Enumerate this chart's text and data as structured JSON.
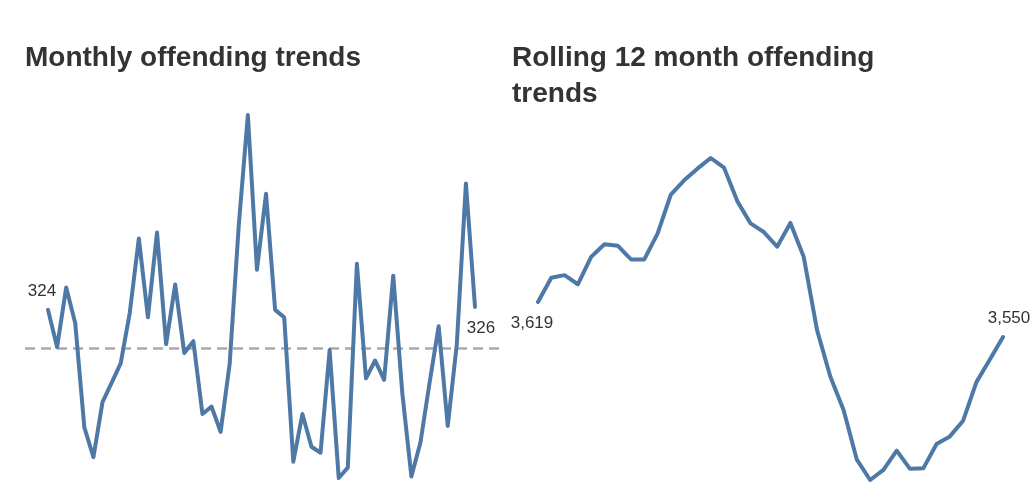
{
  "chart_data": [
    {
      "type": "line",
      "title": "Monthly offending trends",
      "categories": [
        null,
        null,
        null,
        null,
        null,
        null,
        null,
        null,
        null,
        null,
        null,
        null,
        null,
        null,
        null,
        null,
        null,
        null,
        null,
        null,
        null,
        null,
        null,
        null,
        null,
        null,
        null,
        null,
        null,
        null,
        null,
        null,
        null,
        null,
        null,
        null,
        null,
        null,
        null,
        null,
        null,
        null,
        null,
        null,
        null,
        null,
        null,
        null
      ],
      "series": [
        {
          "color": "#4e79a7",
          "values": [
            324,
            299,
            339,
            315,
            245,
            225,
            262,
            275,
            288,
            322,
            372,
            319,
            376,
            301,
            341,
            295,
            303,
            254,
            259,
            242,
            288,
            381,
            455,
            351,
            402,
            324,
            319,
            222,
            254,
            232,
            228,
            297,
            211,
            218,
            355,
            278,
            290,
            277,
            347,
            268,
            212,
            235,
            275,
            313,
            246,
            301,
            409,
            326
          ],
          "value_labels": [
            "324",
            null,
            null,
            null,
            null,
            null,
            null,
            null,
            null,
            null,
            null,
            null,
            null,
            null,
            null,
            null,
            null,
            null,
            null,
            null,
            null,
            null,
            null,
            null,
            null,
            null,
            null,
            null,
            null,
            null,
            null,
            null,
            null,
            null,
            null,
            null,
            null,
            null,
            null,
            null,
            null,
            null,
            null,
            null,
            null,
            null,
            null,
            "326"
          ]
        }
      ],
      "ref_lines": [
        {
          "axis": "y",
          "value": 298,
          "color": "#aaaaaa",
          "line_style": "dashed"
        }
      ]
    },
    {
      "type": "line",
      "title": "Rolling 12 month offending trends",
      "categories": [
        null,
        null,
        null,
        null,
        null,
        null,
        null,
        null,
        null,
        null,
        null,
        null,
        null,
        null,
        null,
        null,
        null,
        null,
        null,
        null,
        null,
        null,
        null,
        null,
        null,
        null,
        null,
        null,
        null,
        null,
        null,
        null,
        null,
        null,
        null,
        null
      ],
      "series": [
        {
          "color": "#4e79a7",
          "values": [
            3619,
            3667,
            3672,
            3654,
            3708,
            3733,
            3730,
            3703,
            3703,
            3754,
            3831,
            3859,
            3882,
            3903,
            3884,
            3818,
            3774,
            3757,
            3728,
            3775,
            3708,
            3564,
            3472,
            3406,
            3308,
            3268,
            3288,
            3326,
            3290,
            3291,
            3339,
            3354,
            3385,
            3461,
            3505,
            3550
          ],
          "value_labels": [
            "3,619",
            null,
            null,
            null,
            null,
            null,
            null,
            null,
            null,
            null,
            null,
            null,
            null,
            null,
            null,
            null,
            null,
            null,
            null,
            null,
            null,
            null,
            null,
            null,
            null,
            null,
            null,
            null,
            null,
            null,
            null,
            null,
            null,
            null,
            null,
            "3,550"
          ]
        }
      ]
    }
  ]
}
